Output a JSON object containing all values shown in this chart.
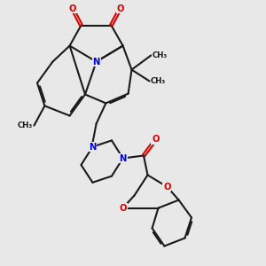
{
  "bg_color": "#e8e8e8",
  "bond_color": "#1a1a1a",
  "N_color": "#0000dd",
  "O_color": "#dd0000",
  "lw": 1.5,
  "dbo": 0.055,
  "fs": 7.2,
  "figsize": [
    3.0,
    3.0
  ],
  "dpi": 100
}
